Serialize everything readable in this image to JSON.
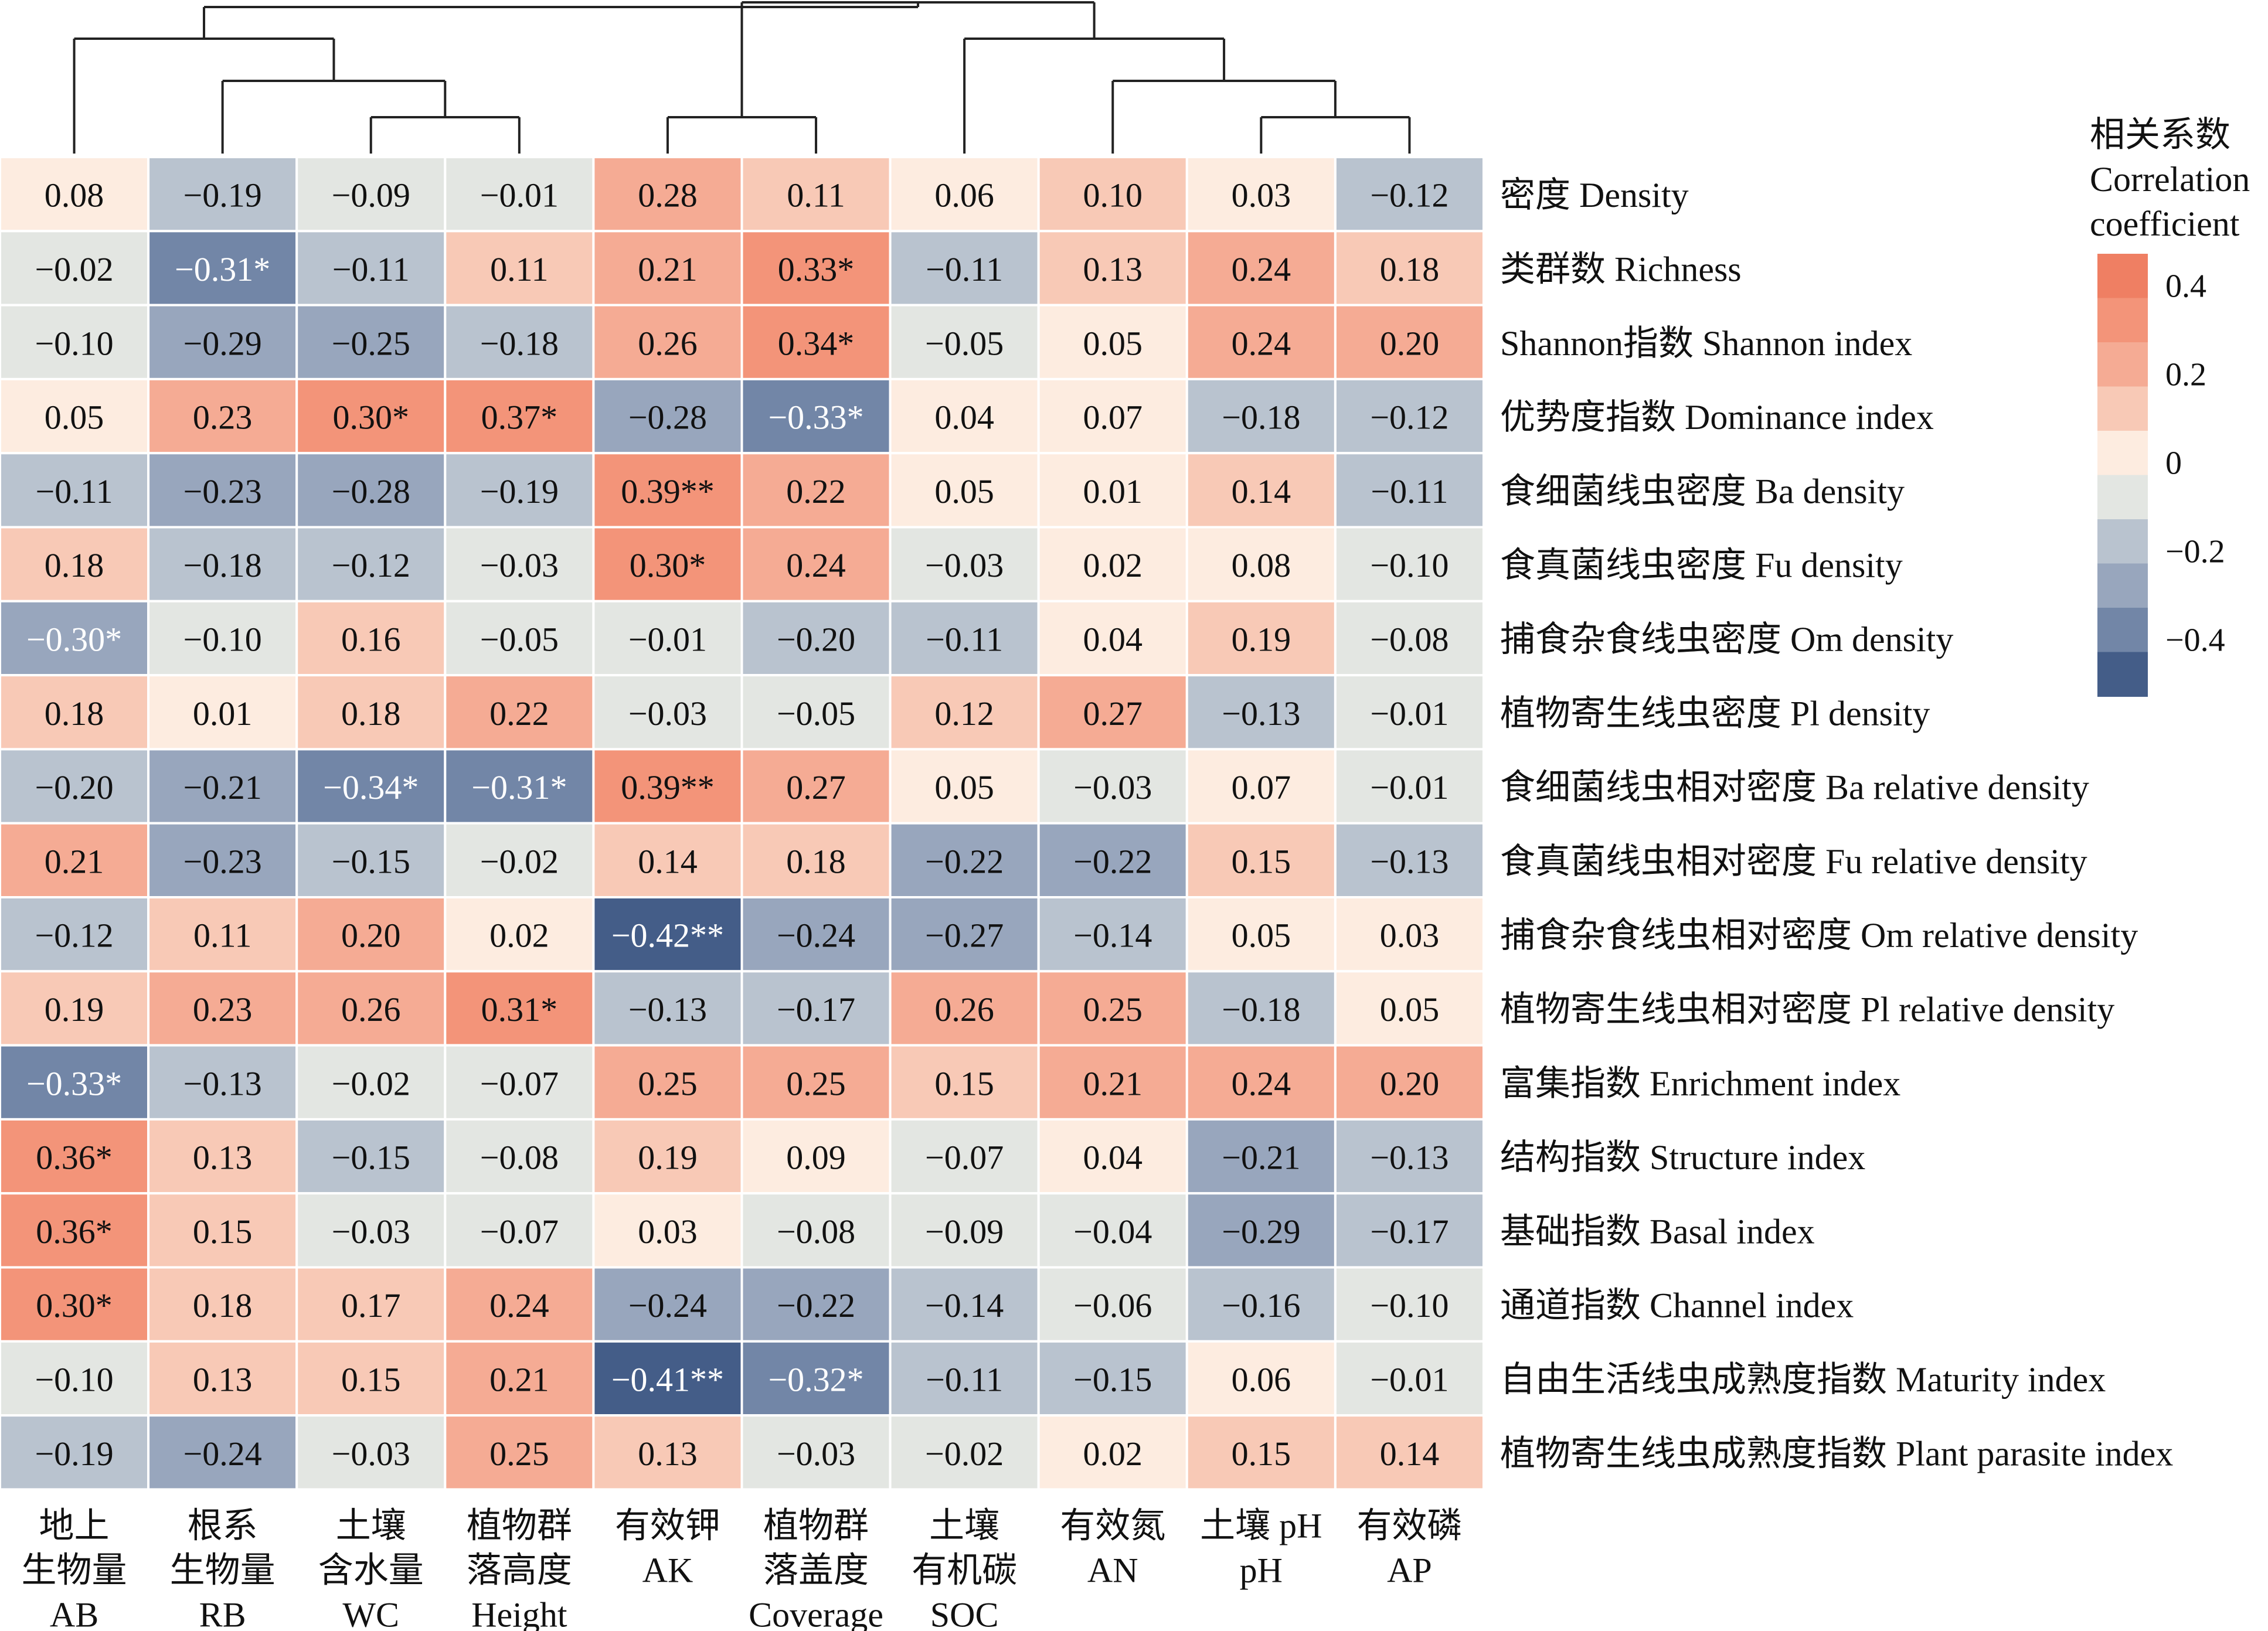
{
  "chart_data": {
    "type": "heatmap",
    "columns": [
      {
        "lines": [
          "地上",
          "生物量",
          "AB"
        ]
      },
      {
        "lines": [
          "根系",
          "生物量",
          "RB"
        ]
      },
      {
        "lines": [
          "土壤",
          "含水量",
          "WC"
        ]
      },
      {
        "lines": [
          "植物群",
          "落高度",
          "Height"
        ]
      },
      {
        "lines": [
          "有效钾",
          "AK"
        ]
      },
      {
        "lines": [
          "植物群",
          "落盖度",
          "Coverage"
        ]
      },
      {
        "lines": [
          "土壤",
          "有机碳",
          "SOC"
        ]
      },
      {
        "lines": [
          "有效氮",
          "AN"
        ]
      },
      {
        "lines": [
          "土壤 pH",
          "pH"
        ]
      },
      {
        "lines": [
          "有效磷",
          "AP"
        ]
      }
    ],
    "rows": [
      "密度 Density",
      "类群数 Richness",
      "Shannon指数 Shannon index",
      "优势度指数 Dominance index",
      "食细菌线虫密度 Ba density",
      "食真菌线虫密度 Fu density",
      "捕食杂食线虫密度 Om density",
      "植物寄生线虫密度 Pl density",
      "食细菌线虫相对密度 Ba relative density",
      "食真菌线虫相对密度 Fu relative density",
      "捕食杂食线虫相对密度 Om relative density",
      "植物寄生线虫相对密度 Pl relative density",
      "富集指数 Enrichment index",
      "结构指数 Structure index",
      "基础指数 Basal index",
      "通道指数 Channel index",
      "自由生活线虫成熟度指数 Maturity index",
      "植物寄生线虫成熟度指数 Plant parasite index"
    ],
    "values": [
      [
        0.08,
        -0.19,
        -0.09,
        -0.01,
        0.28,
        0.11,
        0.06,
        0.1,
        0.03,
        -0.12
      ],
      [
        -0.02,
        -0.31,
        -0.11,
        0.11,
        0.21,
        0.33,
        -0.11,
        0.13,
        0.24,
        0.18
      ],
      [
        -0.1,
        -0.29,
        -0.25,
        -0.18,
        0.26,
        0.34,
        -0.05,
        0.05,
        0.24,
        0.2
      ],
      [
        0.05,
        0.23,
        0.3,
        0.37,
        -0.28,
        -0.33,
        0.04,
        0.07,
        -0.18,
        -0.12
      ],
      [
        -0.11,
        -0.23,
        -0.28,
        -0.19,
        0.39,
        0.22,
        0.05,
        0.01,
        0.14,
        -0.11
      ],
      [
        0.18,
        -0.18,
        -0.12,
        -0.03,
        0.3,
        0.24,
        -0.03,
        0.02,
        0.08,
        -0.1
      ],
      [
        -0.3,
        -0.1,
        0.16,
        -0.05,
        -0.01,
        -0.2,
        -0.11,
        0.04,
        0.19,
        -0.08
      ],
      [
        0.18,
        0.01,
        0.18,
        0.22,
        -0.03,
        -0.05,
        0.12,
        0.27,
        -0.13,
        -0.01
      ],
      [
        -0.2,
        -0.21,
        -0.34,
        -0.31,
        0.39,
        0.27,
        0.05,
        -0.03,
        0.07,
        -0.01
      ],
      [
        0.21,
        -0.23,
        -0.15,
        -0.02,
        0.14,
        0.18,
        -0.22,
        -0.22,
        0.15,
        -0.13
      ],
      [
        -0.12,
        0.11,
        0.2,
        0.02,
        -0.42,
        -0.24,
        -0.27,
        -0.14,
        0.05,
        0.03
      ],
      [
        0.19,
        0.23,
        0.26,
        0.31,
        -0.13,
        -0.17,
        0.26,
        0.25,
        -0.18,
        0.05
      ],
      [
        -0.33,
        -0.13,
        -0.02,
        -0.07,
        0.25,
        0.25,
        0.15,
        0.21,
        0.24,
        0.2
      ],
      [
        0.36,
        0.13,
        -0.15,
        -0.08,
        0.19,
        0.09,
        -0.07,
        0.04,
        -0.21,
        -0.13
      ],
      [
        0.36,
        0.15,
        -0.03,
        -0.07,
        0.03,
        -0.08,
        -0.09,
        -0.04,
        -0.29,
        -0.17
      ],
      [
        0.3,
        0.18,
        0.17,
        0.24,
        -0.24,
        -0.22,
        -0.14,
        -0.06,
        -0.16,
        -0.1
      ],
      [
        -0.1,
        0.13,
        0.15,
        0.21,
        -0.41,
        -0.32,
        -0.11,
        -0.15,
        0.06,
        -0.01
      ],
      [
        -0.19,
        -0.24,
        -0.03,
        0.25,
        0.13,
        -0.03,
        -0.02,
        0.02,
        0.15,
        0.14
      ]
    ],
    "significance": [
      [
        "",
        "",
        "",
        "",
        "",
        "",
        "",
        "",
        "",
        ""
      ],
      [
        "",
        "*",
        "",
        "",
        "",
        "*",
        "",
        "",
        "",
        ""
      ],
      [
        "",
        "",
        "",
        "",
        "",
        "*",
        "",
        "",
        "",
        ""
      ],
      [
        "",
        "",
        "*",
        "*",
        "",
        "*",
        "",
        "",
        "",
        ""
      ],
      [
        "",
        "",
        "",
        "",
        "**",
        "",
        "",
        "",
        "",
        ""
      ],
      [
        "",
        "",
        "",
        "",
        "*",
        "",
        "",
        "",
        "",
        ""
      ],
      [
        "*",
        "",
        "",
        "",
        "",
        "",
        "",
        "",
        "",
        ""
      ],
      [
        "",
        "",
        "",
        "",
        "",
        "",
        "",
        "",
        "",
        ""
      ],
      [
        "",
        "",
        "*",
        "*",
        "**",
        "",
        "",
        "",
        "",
        ""
      ],
      [
        "",
        "",
        "",
        "",
        "",
        "",
        "",
        "",
        "",
        ""
      ],
      [
        "",
        "",
        "",
        "",
        "**",
        "",
        "",
        "",
        "",
        ""
      ],
      [
        "",
        "",
        "",
        "*",
        "",
        "",
        "",
        "",
        "",
        ""
      ],
      [
        "*",
        "",
        "",
        "",
        "",
        "",
        "",
        "",
        "",
        ""
      ],
      [
        "*",
        "",
        "",
        "",
        "",
        "",
        "",
        "",
        "",
        ""
      ],
      [
        "*",
        "",
        "",
        "",
        "",
        "",
        "",
        "",
        "",
        ""
      ],
      [
        "*",
        "",
        "",
        "",
        "",
        "",
        "",
        "",
        "",
        ""
      ],
      [
        "",
        "",
        "",
        "",
        "**",
        "*",
        "",
        "",
        "",
        ""
      ],
      [
        "",
        "",
        "",
        "",
        "",
        "",
        "",
        "",
        "",
        ""
      ]
    ],
    "color_scale": {
      "bins": [
        {
          "min": 0.4,
          "color": "#ef7f63"
        },
        {
          "min": 0.3,
          "color": "#f39479"
        },
        {
          "min": 0.2,
          "color": "#f5ab94"
        },
        {
          "min": 0.1,
          "color": "#f8c9b6"
        },
        {
          "min": 0.0,
          "color": "#fdece0"
        },
        {
          "min": -0.1,
          "color": "#e3e6e2"
        },
        {
          "min": -0.2,
          "color": "#b9c3cf"
        },
        {
          "min": -0.3,
          "color": "#98a6bd"
        },
        {
          "min": -0.4,
          "color": "#7286a7"
        },
        {
          "min": -1.0,
          "color": "#445d88"
        }
      ],
      "legend_colors": [
        "#ef7f63",
        "#f39479",
        "#f5ab94",
        "#f8c9b6",
        "#fdece0",
        "#e3e6e2",
        "#b9c3cf",
        "#98a6bd",
        "#7286a7",
        "#445d88"
      ],
      "legend_ticks": [
        {
          "value": 0.4,
          "label": "0.4"
        },
        {
          "value": 0.2,
          "label": "0.2"
        },
        {
          "value": 0,
          "label": "0"
        },
        {
          "value": -0.2,
          "label": "−0.2"
        },
        {
          "value": -0.4,
          "label": "−0.4"
        }
      ]
    },
    "legend_title": [
      "相关系数",
      "Correlation",
      "coefficient"
    ],
    "column_dendrogram_groups": [
      [
        0,
        [
          1,
          [
            2,
            3
          ]
        ]
      ],
      [
        [
          4,
          5
        ],
        [
          6,
          [
            7,
            [
              8,
              9
            ]
          ]
        ]
      ]
    ]
  }
}
